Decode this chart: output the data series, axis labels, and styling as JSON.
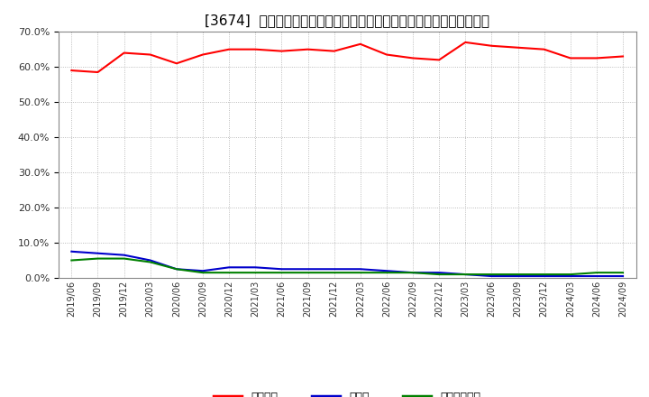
{
  "title": "[3674]  自己資本、のれん、繰延税金資産の総資産に対する比率の推移",
  "x_labels": [
    "2019/06",
    "2019/09",
    "2019/12",
    "2020/03",
    "2020/06",
    "2020/09",
    "2020/12",
    "2021/03",
    "2021/06",
    "2021/09",
    "2021/12",
    "2022/03",
    "2022/06",
    "2022/09",
    "2022/12",
    "2023/03",
    "2023/06",
    "2023/09",
    "2023/12",
    "2024/03",
    "2024/06",
    "2024/09"
  ],
  "jiko_shihon": [
    59.0,
    58.5,
    64.0,
    63.5,
    61.0,
    63.5,
    65.0,
    65.0,
    64.5,
    65.0,
    64.5,
    66.5,
    63.5,
    62.5,
    62.0,
    67.0,
    66.0,
    65.5,
    65.0,
    62.5,
    62.5,
    63.0
  ],
  "noren": [
    7.5,
    7.0,
    6.5,
    5.0,
    2.5,
    2.0,
    3.0,
    3.0,
    2.5,
    2.5,
    2.5,
    2.5,
    2.0,
    1.5,
    1.5,
    1.0,
    0.5,
    0.5,
    0.5,
    0.5,
    0.5,
    0.5
  ],
  "kurinobe_zeikinsisan": [
    5.0,
    5.5,
    5.5,
    4.5,
    2.5,
    1.5,
    1.5,
    1.5,
    1.5,
    1.5,
    1.5,
    1.5,
    1.5,
    1.5,
    1.0,
    1.0,
    1.0,
    1.0,
    1.0,
    1.0,
    1.5,
    1.5
  ],
  "jiko_color": "#ff0000",
  "noren_color": "#0000cc",
  "kurinobe_color": "#008000",
  "ylim": [
    0.0,
    70.0
  ],
  "yticks": [
    0.0,
    10.0,
    20.0,
    30.0,
    40.0,
    50.0,
    60.0,
    70.0
  ],
  "legend_labels": [
    "自己資本",
    "のれん",
    "繰延税金資産"
  ],
  "bg_color": "#ffffff",
  "plot_bg_color": "#ffffff",
  "grid_color": "#aaaaaa",
  "title_fontsize": 11
}
